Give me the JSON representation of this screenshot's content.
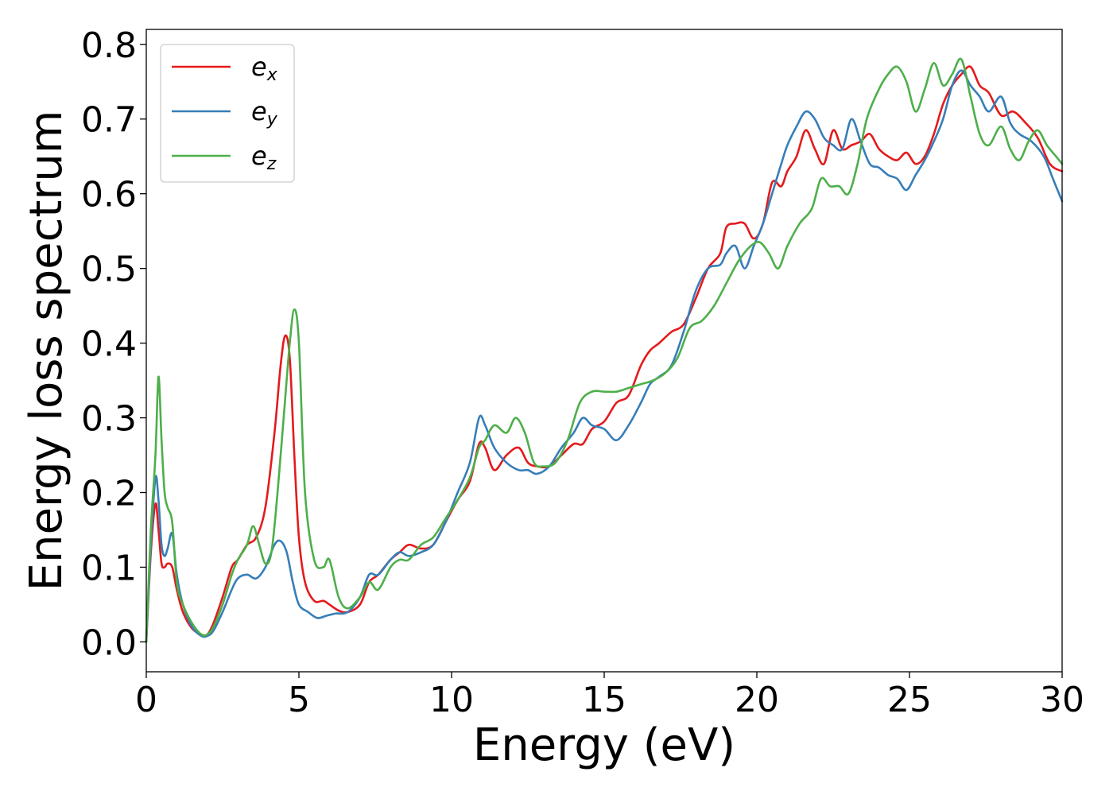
{
  "chart_data": {
    "type": "line",
    "title": "",
    "xlabel": "Energy (eV)",
    "ylabel": "Energy loss spectrum",
    "xlim": [
      0,
      30
    ],
    "ylim": [
      -0.04,
      0.82
    ],
    "xticks": [
      0,
      5,
      10,
      15,
      20,
      25,
      30
    ],
    "xtick_labels": [
      "0",
      "5",
      "10",
      "15",
      "20",
      "25",
      "30"
    ],
    "yticks": [
      0.0,
      0.1,
      0.2,
      0.3,
      0.4,
      0.5,
      0.6,
      0.7,
      0.8
    ],
    "ytick_labels": [
      "0.0",
      "0.1",
      "0.2",
      "0.3",
      "0.4",
      "0.5",
      "0.6",
      "0.7",
      "0.8"
    ],
    "grid": false,
    "legend_position": "top-left",
    "series": [
      {
        "name": "e",
        "subscript": "x",
        "color": "#e41a1c",
        "x": [
          0,
          0.15,
          0.3,
          0.4,
          0.5,
          0.6,
          0.7,
          0.85,
          1.0,
          1.2,
          1.5,
          1.8,
          2.0,
          2.2,
          2.5,
          2.8,
          3.0,
          3.3,
          3.6,
          3.9,
          4.2,
          4.4,
          4.55,
          4.7,
          4.85,
          5.0,
          5.2,
          5.5,
          5.8,
          6.0,
          6.3,
          6.6,
          7.0,
          7.3,
          7.6,
          8.0,
          8.3,
          8.6,
          9.0,
          9.4,
          9.8,
          10.2,
          10.6,
          10.9,
          11.1,
          11.4,
          11.8,
          12.2,
          12.5,
          12.8,
          13.2,
          13.6,
          14.0,
          14.3,
          14.6,
          15.0,
          15.4,
          15.8,
          16.2,
          16.5,
          16.8,
          17.2,
          17.6,
          18.0,
          18.4,
          18.8,
          19.0,
          19.3,
          19.6,
          19.9,
          20.2,
          20.5,
          20.8,
          21.0,
          21.3,
          21.6,
          21.9,
          22.2,
          22.5,
          22.8,
          23.1,
          23.4,
          23.7,
          24.0,
          24.3,
          24.6,
          24.9,
          25.2,
          25.5,
          25.8,
          26.1,
          26.4,
          26.7,
          27.0,
          27.3,
          27.6,
          28.0,
          28.4,
          28.8,
          29.2,
          29.6,
          30.0
        ],
        "y": [
          0.0,
          0.12,
          0.185,
          0.15,
          0.105,
          0.1,
          0.105,
          0.1,
          0.07,
          0.04,
          0.018,
          0.01,
          0.01,
          0.025,
          0.06,
          0.1,
          0.11,
          0.13,
          0.14,
          0.18,
          0.28,
          0.37,
          0.41,
          0.38,
          0.25,
          0.14,
          0.08,
          0.055,
          0.055,
          0.05,
          0.042,
          0.04,
          0.05,
          0.08,
          0.09,
          0.11,
          0.12,
          0.13,
          0.125,
          0.13,
          0.16,
          0.19,
          0.215,
          0.265,
          0.26,
          0.23,
          0.25,
          0.26,
          0.24,
          0.235,
          0.235,
          0.25,
          0.265,
          0.265,
          0.285,
          0.295,
          0.32,
          0.33,
          0.37,
          0.39,
          0.4,
          0.415,
          0.425,
          0.46,
          0.5,
          0.52,
          0.555,
          0.56,
          0.56,
          0.54,
          0.56,
          0.615,
          0.61,
          0.63,
          0.65,
          0.685,
          0.66,
          0.64,
          0.685,
          0.66,
          0.665,
          0.67,
          0.68,
          0.66,
          0.65,
          0.645,
          0.655,
          0.64,
          0.65,
          0.68,
          0.72,
          0.745,
          0.76,
          0.77,
          0.745,
          0.735,
          0.705,
          0.71,
          0.695,
          0.675,
          0.64,
          0.63
        ]
      },
      {
        "name": "e",
        "subscript": "y",
        "color": "#377eb8",
        "x": [
          0,
          0.15,
          0.3,
          0.4,
          0.5,
          0.6,
          0.7,
          0.85,
          1.0,
          1.2,
          1.5,
          1.8,
          2.0,
          2.2,
          2.5,
          2.8,
          3.0,
          3.3,
          3.6,
          3.9,
          4.2,
          4.4,
          4.6,
          4.8,
          5.0,
          5.3,
          5.6,
          5.9,
          6.2,
          6.6,
          7.0,
          7.3,
          7.6,
          8.0,
          8.3,
          8.6,
          9.0,
          9.4,
          9.8,
          10.2,
          10.6,
          10.9,
          11.1,
          11.4,
          11.8,
          12.2,
          12.5,
          12.8,
          13.2,
          13.6,
          14.0,
          14.3,
          14.6,
          15.0,
          15.4,
          15.8,
          16.2,
          16.5,
          16.8,
          17.2,
          17.6,
          18.0,
          18.4,
          18.8,
          19.0,
          19.3,
          19.6,
          19.9,
          20.2,
          20.5,
          20.8,
          21.0,
          21.3,
          21.6,
          21.9,
          22.2,
          22.5,
          22.8,
          23.1,
          23.4,
          23.7,
          24.0,
          24.3,
          24.6,
          24.9,
          25.2,
          25.5,
          25.8,
          26.1,
          26.4,
          26.7,
          27.0,
          27.3,
          27.6,
          28.0,
          28.3,
          28.6,
          29.0,
          29.4,
          29.7,
          30.0
        ],
        "y": [
          0.0,
          0.13,
          0.22,
          0.19,
          0.13,
          0.115,
          0.125,
          0.145,
          0.09,
          0.05,
          0.02,
          0.008,
          0.008,
          0.015,
          0.04,
          0.07,
          0.085,
          0.09,
          0.085,
          0.1,
          0.13,
          0.135,
          0.12,
          0.08,
          0.05,
          0.04,
          0.032,
          0.035,
          0.038,
          0.04,
          0.06,
          0.09,
          0.09,
          0.11,
          0.12,
          0.115,
          0.12,
          0.13,
          0.16,
          0.2,
          0.24,
          0.3,
          0.29,
          0.26,
          0.24,
          0.23,
          0.23,
          0.225,
          0.235,
          0.26,
          0.28,
          0.3,
          0.29,
          0.285,
          0.27,
          0.29,
          0.32,
          0.345,
          0.355,
          0.37,
          0.415,
          0.47,
          0.5,
          0.505,
          0.52,
          0.53,
          0.5,
          0.53,
          0.56,
          0.6,
          0.64,
          0.665,
          0.69,
          0.71,
          0.7,
          0.675,
          0.665,
          0.66,
          0.7,
          0.67,
          0.64,
          0.635,
          0.625,
          0.62,
          0.605,
          0.625,
          0.645,
          0.67,
          0.7,
          0.745,
          0.765,
          0.745,
          0.73,
          0.71,
          0.73,
          0.695,
          0.68,
          0.67,
          0.65,
          0.62,
          0.59
        ]
      },
      {
        "name": "e",
        "subscript": "z",
        "color": "#4daf4a",
        "x": [
          0,
          0.15,
          0.3,
          0.4,
          0.5,
          0.6,
          0.7,
          0.85,
          1.0,
          1.2,
          1.5,
          1.8,
          2.0,
          2.2,
          2.5,
          2.8,
          3.0,
          3.3,
          3.5,
          3.7,
          3.9,
          4.1,
          4.3,
          4.5,
          4.7,
          4.85,
          5.0,
          5.2,
          5.5,
          5.8,
          6.0,
          6.3,
          6.6,
          7.0,
          7.3,
          7.6,
          8.0,
          8.3,
          8.6,
          9.0,
          9.4,
          9.8,
          10.2,
          10.6,
          10.9,
          11.1,
          11.4,
          11.8,
          12.1,
          12.4,
          12.7,
          13.0,
          13.4,
          13.8,
          14.2,
          14.6,
          15.0,
          15.4,
          15.8,
          16.2,
          16.6,
          17.0,
          17.4,
          17.8,
          18.2,
          18.6,
          19.0,
          19.4,
          19.8,
          20.1,
          20.4,
          20.7,
          21.0,
          21.4,
          21.8,
          22.1,
          22.4,
          22.7,
          23.0,
          23.3,
          23.6,
          24.0,
          24.3,
          24.6,
          24.9,
          25.2,
          25.5,
          25.8,
          26.1,
          26.4,
          26.7,
          27.0,
          27.3,
          27.6,
          28.0,
          28.3,
          28.6,
          28.9,
          29.2,
          29.5,
          29.8,
          30.0
        ],
        "y": [
          0.0,
          0.15,
          0.25,
          0.355,
          0.27,
          0.2,
          0.18,
          0.16,
          0.08,
          0.05,
          0.025,
          0.01,
          0.01,
          0.02,
          0.05,
          0.09,
          0.11,
          0.13,
          0.155,
          0.13,
          0.105,
          0.12,
          0.2,
          0.3,
          0.4,
          0.445,
          0.4,
          0.2,
          0.11,
          0.1,
          0.11,
          0.06,
          0.045,
          0.06,
          0.08,
          0.07,
          0.1,
          0.11,
          0.11,
          0.13,
          0.14,
          0.165,
          0.19,
          0.22,
          0.26,
          0.27,
          0.29,
          0.28,
          0.3,
          0.28,
          0.24,
          0.235,
          0.24,
          0.27,
          0.32,
          0.335,
          0.335,
          0.335,
          0.34,
          0.345,
          0.35,
          0.36,
          0.38,
          0.42,
          0.43,
          0.45,
          0.48,
          0.51,
          0.53,
          0.535,
          0.52,
          0.5,
          0.53,
          0.56,
          0.58,
          0.62,
          0.61,
          0.61,
          0.6,
          0.64,
          0.7,
          0.74,
          0.76,
          0.77,
          0.75,
          0.71,
          0.74,
          0.775,
          0.745,
          0.76,
          0.78,
          0.73,
          0.68,
          0.665,
          0.69,
          0.66,
          0.645,
          0.67,
          0.685,
          0.665,
          0.65,
          0.64
        ]
      }
    ]
  }
}
